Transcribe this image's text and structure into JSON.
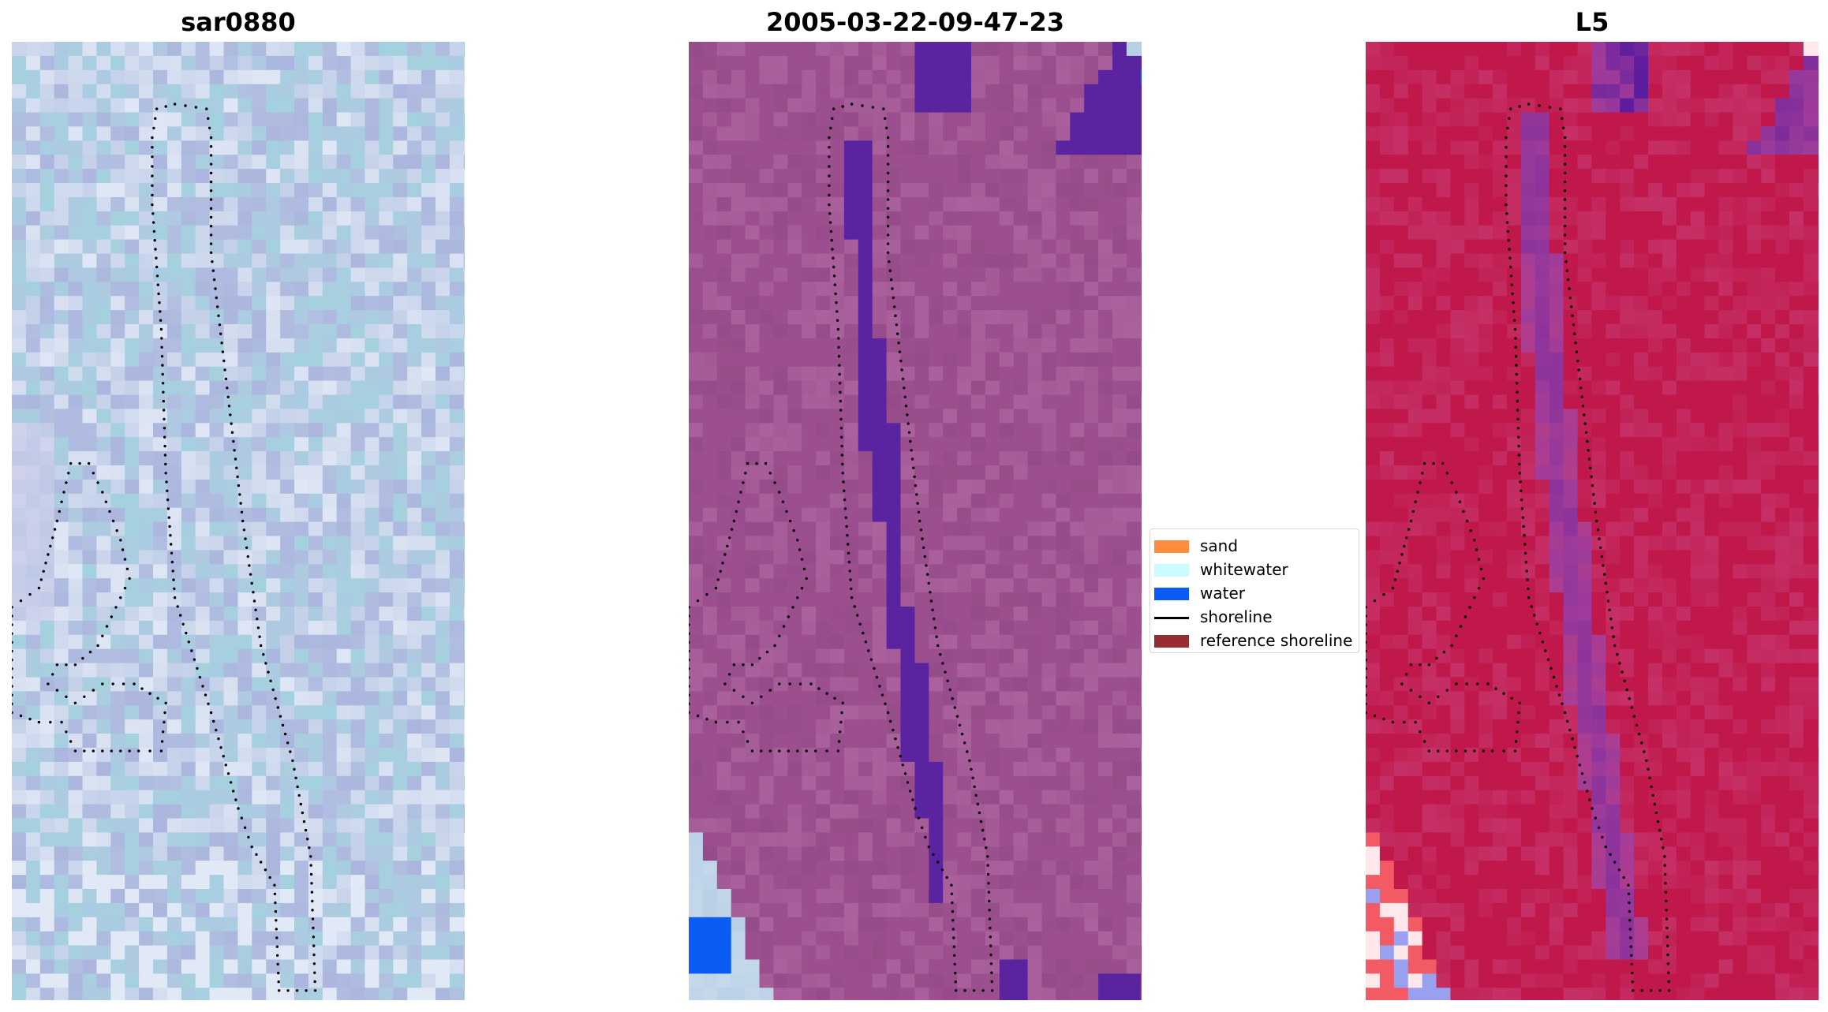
{
  "panels": [
    {
      "title": "sar0880",
      "style": "rgb",
      "colors": {
        "base": "#b4c4e2",
        "cyan": "#9fd6de",
        "white": "#eef2fb",
        "violet": "#a8b0dc",
        "lavender": "#dcd8f0"
      }
    },
    {
      "title": "2005-03-22-09-47-23",
      "style": "classified",
      "colors": {
        "base": "#9c4f8e",
        "light": "#b06aa4",
        "dark": "#8a4683",
        "water_overlay": "#5a24a0",
        "water": "#0b5cf5",
        "whitewater": "#b8cfe6"
      }
    },
    {
      "title": "L5",
      "style": "index",
      "colors": {
        "base": "#c0184a",
        "pink": "#c9407a",
        "purple": "#a03c9a",
        "deep_purple": "#5a1c9e",
        "light_red": "#f25a64",
        "pale_blue": "#9aa0f0",
        "white": "#ffe8ec"
      }
    }
  ],
  "legend": {
    "items": [
      {
        "label": "sand",
        "color": "#ff8c3c",
        "kind": "patch"
      },
      {
        "label": "whitewater",
        "color": "#c9fbff",
        "kind": "patch"
      },
      {
        "label": "water",
        "color": "#0b5cf5",
        "kind": "patch"
      },
      {
        "label": "shoreline",
        "color": "#000000",
        "kind": "line"
      },
      {
        "label": "reference shoreline",
        "color": "#962d33",
        "kind": "patch"
      }
    ]
  },
  "shoreline_color": "#000000"
}
